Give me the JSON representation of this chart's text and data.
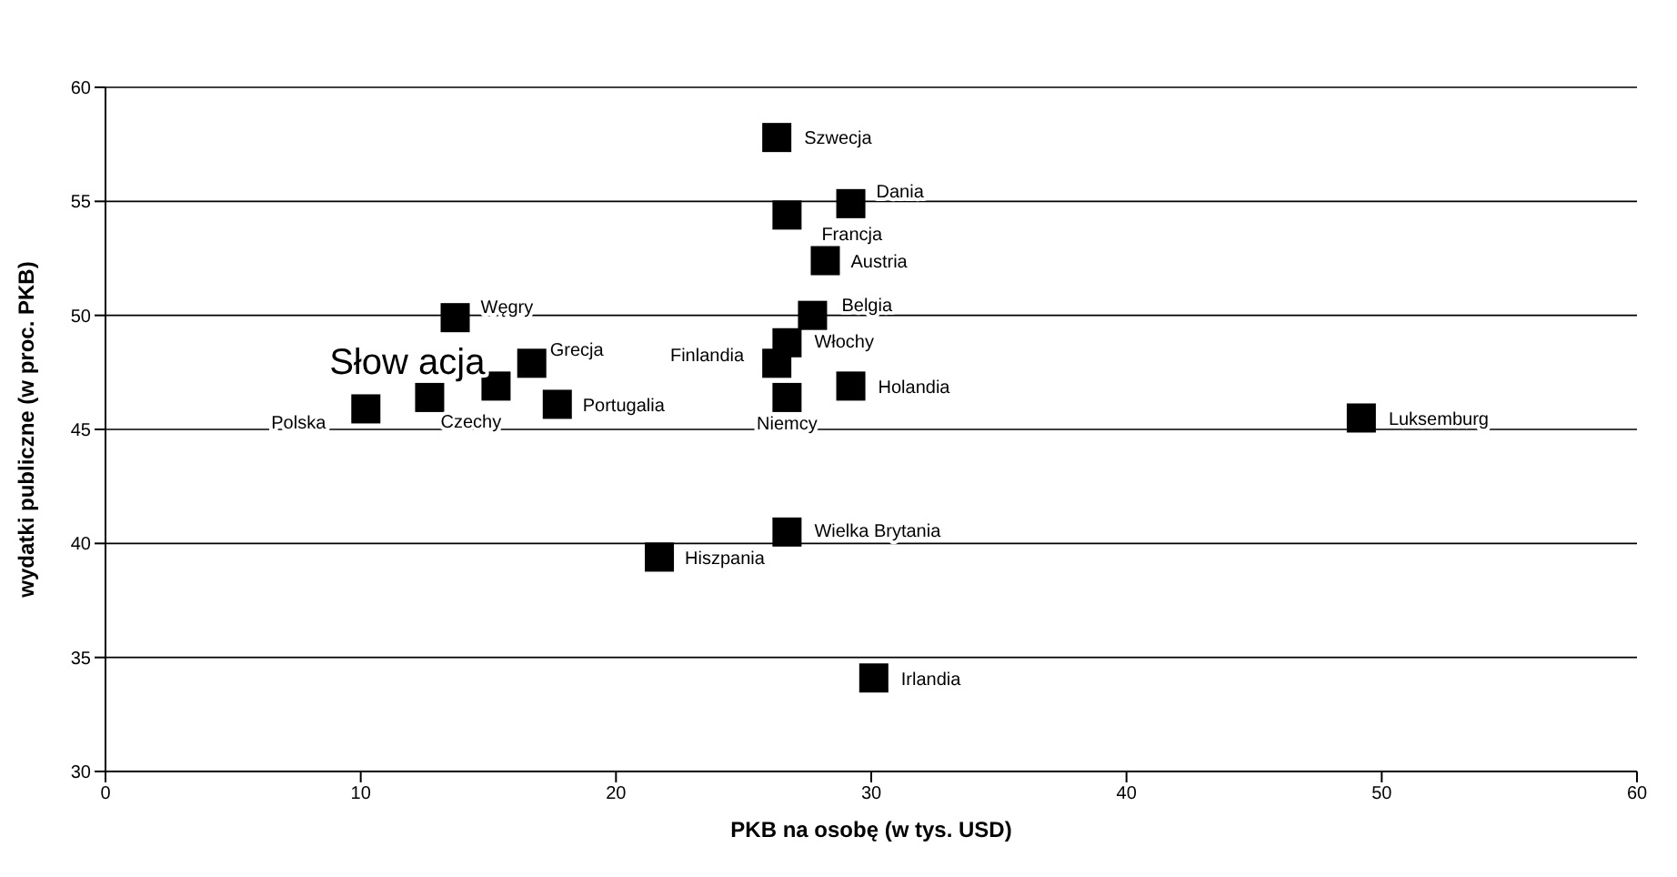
{
  "chart_data": {
    "type": "scatter",
    "xlabel": "PKB na osobę (w tys. USD)",
    "ylabel": "wydatki publiczne (w proc. PKB)",
    "x": [
      10.2,
      12.7,
      15.3,
      13.7,
      16.7,
      17.7,
      26.3,
      26.7,
      26.7,
      27.7,
      28.2,
      26.7,
      29.2,
      26.3,
      29.2,
      49.2,
      26.7,
      21.7,
      30.1
    ],
    "series": [
      {
        "color": "#000000",
        "values": [
          45.9,
          46.4,
          46.9,
          49.9,
          47.9,
          46.1,
          47.9,
          46.4,
          48.8,
          50.0,
          52.4,
          54.4,
          54.9,
          57.8,
          46.9,
          45.5,
          40.5,
          39.4,
          34.1
        ]
      }
    ],
    "marker": "square",
    "xlim": [
      0,
      60
    ],
    "xticks": [
      0,
      10,
      20,
      30,
      40,
      50,
      60
    ],
    "ylim": [
      30,
      60
    ],
    "yticks": [
      30,
      35,
      40,
      45,
      50,
      55,
      60
    ],
    "grid": "y",
    "annotations": [
      {
        "text": "Polska",
        "x": 10.2,
        "y": 45.9
      },
      {
        "text": "Czechy",
        "x": 12.7,
        "y": 46.4
      },
      {
        "text": "Słow acja",
        "x": 15.3,
        "y": 46.9
      },
      {
        "text": "Węgry",
        "x": 13.7,
        "y": 49.9
      },
      {
        "text": "Grecja",
        "x": 16.7,
        "y": 47.9
      },
      {
        "text": "Portugalia",
        "x": 17.7,
        "y": 46.1
      },
      {
        "text": "Finlandia",
        "x": 26.3,
        "y": 47.9
      },
      {
        "text": "Niemcy",
        "x": 26.7,
        "y": 46.4
      },
      {
        "text": "Włochy",
        "x": 26.7,
        "y": 48.8
      },
      {
        "text": "Belgia",
        "x": 27.7,
        "y": 50.0
      },
      {
        "text": "Austria",
        "x": 28.2,
        "y": 52.4
      },
      {
        "text": "Francja",
        "x": 26.7,
        "y": 54.4
      },
      {
        "text": "Dania",
        "x": 29.2,
        "y": 54.9
      },
      {
        "text": "Szwecja",
        "x": 26.3,
        "y": 57.8
      },
      {
        "text": "Holandia",
        "x": 29.2,
        "y": 46.9
      },
      {
        "text": "Luksemburg",
        "x": 49.2,
        "y": 45.5
      },
      {
        "text": "Wielka Brytania",
        "x": 26.7,
        "y": 40.5
      },
      {
        "text": "Hiszpania",
        "x": 21.7,
        "y": 39.4
      },
      {
        "text": "Irlandia",
        "x": 30.1,
        "y": 34.1
      }
    ]
  }
}
